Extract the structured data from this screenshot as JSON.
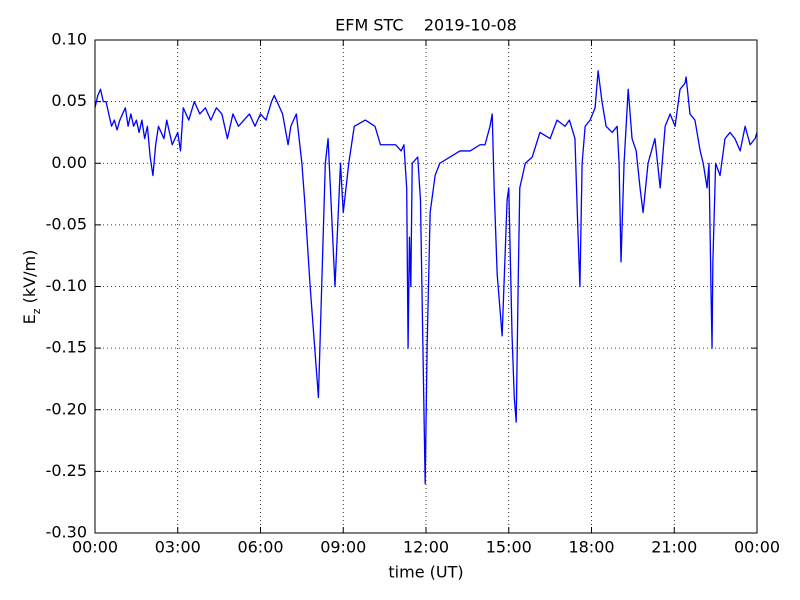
{
  "chart_data": {
    "type": "line",
    "title": "EFM STC    2019-10-08",
    "x_label": "time (UT)",
    "y_label": [
      "E",
      "z",
      " (kV/m)"
    ],
    "xlim": [
      0,
      24
    ],
    "xticks": [
      {
        "value": 0,
        "label": "00:00"
      },
      {
        "value": 3,
        "label": "03:00"
      },
      {
        "value": 6,
        "label": "06:00"
      },
      {
        "value": 9,
        "label": "09:00"
      },
      {
        "value": 12,
        "label": "12:00"
      },
      {
        "value": 15,
        "label": "15:00"
      },
      {
        "value": 18,
        "label": "18:00"
      },
      {
        "value": 21,
        "label": "21:00"
      },
      {
        "value": 24,
        "label": "00:00"
      }
    ],
    "ylim": [
      -0.3,
      0.1
    ],
    "yticks": [
      {
        "value": -0.3,
        "label": "-0.30"
      },
      {
        "value": -0.25,
        "label": "-0.25"
      },
      {
        "value": -0.2,
        "label": "-0.20"
      },
      {
        "value": -0.15,
        "label": "-0.15"
      },
      {
        "value": -0.1,
        "label": "-0.10"
      },
      {
        "value": -0.05,
        "label": "-0.05"
      },
      {
        "value": 0,
        "label": "0.00"
      },
      {
        "value": 0.05,
        "label": "0.05"
      },
      {
        "value": 0.1,
        "label": "0.10"
      }
    ],
    "grid": true,
    "color": "#0000ff",
    "x": [
      0,
      0.1,
      0.2,
      0.3,
      0.4,
      0.5,
      0.6,
      0.7,
      0.8,
      0.9,
      1.0,
      1.1,
      1.2,
      1.3,
      1.4,
      1.5,
      1.6,
      1.7,
      1.8,
      1.9,
      2.0,
      2.1,
      2.2,
      2.3,
      2.5,
      2.6,
      2.8,
      3.0,
      3.1,
      3.2,
      3.4,
      3.6,
      3.8,
      4.0,
      4.2,
      4.4,
      4.6,
      4.8,
      5.0,
      5.2,
      5.4,
      5.6,
      5.8,
      6.0,
      6.2,
      6.4,
      6.5,
      6.8,
      7.0,
      7.1,
      7.3,
      7.5,
      7.6,
      7.8,
      8.1,
      8.35,
      8.45,
      8.7,
      8.9,
      9.0,
      9.2,
      9.4,
      9.8,
      10.15,
      10.35,
      10.9,
      11.1,
      11.2,
      11.3,
      11.35,
      11.4,
      11.45,
      11.5,
      11.7,
      11.8,
      11.97,
      12.04,
      12.15,
      12.33,
      12.5,
      12.87,
      13.23,
      13.6,
      13.96,
      14.14,
      14.32,
      14.4,
      14.47,
      14.58,
      14.76,
      14.94,
      15.0,
      15.12,
      15.2,
      15.27,
      15.34,
      15.4,
      15.6,
      15.85,
      16.13,
      16.5,
      16.75,
      17.04,
      17.2,
      17.4,
      17.5,
      17.58,
      17.66,
      17.77,
      17.95,
      18.13,
      18.24,
      18.38,
      18.53,
      18.75,
      18.93,
      19.0,
      19.07,
      19.18,
      19.33,
      19.47,
      19.62,
      19.76,
      19.87,
      20.05,
      20.3,
      20.49,
      20.67,
      20.85,
      21.03,
      21.21,
      21.39,
      21.43,
      21.57,
      21.75,
      21.94,
      22.05,
      22.19,
      22.26,
      22.33,
      22.37,
      22.4,
      22.5,
      22.66,
      22.84,
      23.02,
      23.2,
      23.39,
      23.57,
      23.75,
      23.93,
      24.0
    ],
    "values": [
      0.045,
      0.055,
      0.06,
      0.05,
      0.05,
      0.04,
      0.03,
      0.035,
      0.027,
      0.035,
      0.04,
      0.045,
      0.03,
      0.04,
      0.03,
      0.035,
      0.025,
      0.035,
      0.02,
      0.03,
      0.005,
      -0.01,
      0.015,
      0.03,
      0.02,
      0.035,
      0.015,
      0.025,
      0.01,
      0.045,
      0.035,
      0.05,
      0.04,
      0.045,
      0.035,
      0.045,
      0.04,
      0.02,
      0.04,
      0.03,
      0.035,
      0.04,
      0.03,
      0.04,
      0.035,
      0.05,
      0.055,
      0.04,
      0.015,
      0.03,
      0.04,
      0.0,
      -0.03,
      -0.1,
      -0.19,
      0.0,
      0.02,
      -0.1,
      0.0,
      -0.04,
      0.0,
      0.03,
      0.035,
      0.03,
      0.015,
      0.015,
      0.01,
      0.015,
      -0.02,
      -0.15,
      -0.06,
      -0.1,
      0.0,
      0.005,
      -0.03,
      -0.26,
      -0.15,
      -0.04,
      -0.01,
      0.0,
      0.005,
      0.01,
      0.01,
      0.015,
      0.015,
      0.03,
      0.04,
      -0.02,
      -0.09,
      -0.14,
      -0.03,
      -0.02,
      -0.14,
      -0.19,
      -0.21,
      -0.1,
      -0.02,
      0.0,
      0.005,
      0.025,
      0.02,
      0.035,
      0.03,
      0.035,
      0.02,
      -0.05,
      -0.1,
      0.0,
      0.03,
      0.035,
      0.045,
      0.075,
      0.05,
      0.03,
      0.025,
      0.03,
      0.0,
      -0.08,
      0.0,
      0.06,
      0.02,
      0.01,
      -0.02,
      -0.04,
      0.0,
      0.02,
      -0.02,
      0.03,
      0.04,
      0.03,
      0.06,
      0.065,
      0.07,
      0.04,
      0.035,
      0.01,
      0.0,
      -0.02,
      0.0,
      -0.1,
      -0.15,
      -0.08,
      0.0,
      -0.01,
      0.02,
      0.025,
      0.02,
      0.01,
      0.03,
      0.015,
      0.02,
      0.025
    ]
  }
}
